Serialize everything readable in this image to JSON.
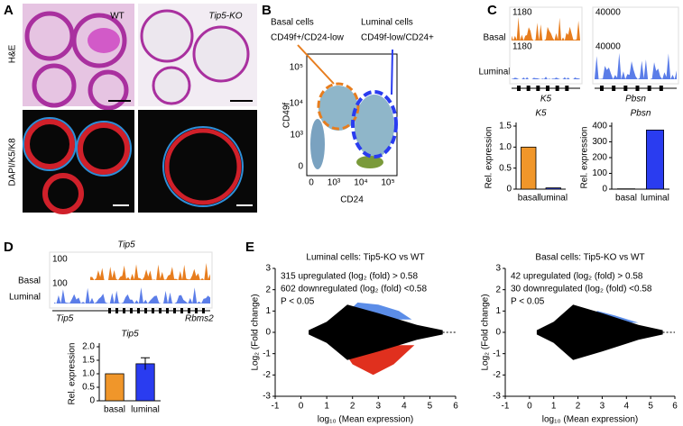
{
  "panels": {
    "A": {
      "label": "A",
      "wt": "WT",
      "ko": "Tip5-KO",
      "row1": "H&E",
      "row2": "DAPI/K5/K8"
    },
    "B": {
      "label": "B",
      "basal": "Basal cells",
      "basal_markers": "CD49f+/CD24-low",
      "luminal": "Luminal cells",
      "luminal_markers": "CD49f-low/CD24+",
      "xlabel": "CD24",
      "ylabel": "CD49f",
      "xticks": [
        "0",
        "10³",
        "10⁴",
        "10⁵"
      ],
      "yticks": [
        "0",
        "10³",
        "10⁴",
        "10⁵"
      ]
    },
    "C": {
      "label": "C",
      "basal": "Basal",
      "luminal": "Luminal",
      "basal_scales": [
        "1180",
        "40000"
      ],
      "luminal_scales": [
        "1180",
        "40000"
      ],
      "genes": [
        "K5",
        "Pbsn"
      ]
    },
    "D": {
      "label": "D",
      "gene": "Tip5",
      "basal": "Basal",
      "luminal": "Luminal",
      "scales": [
        "100",
        "100"
      ],
      "gene_left": "Tip5",
      "gene_right": "Rbms2"
    },
    "E": {
      "label": "E"
    }
  },
  "chart_data": [
    {
      "type": "bar",
      "title": "K5",
      "ylabel": "Rel. expression",
      "categories": [
        "basal",
        "luminal"
      ],
      "values": [
        1.0,
        0.03
      ],
      "colors": [
        "#f0962a",
        "#2a3cf0"
      ],
      "ylim": [
        0,
        1.5
      ],
      "yticks": [
        0,
        0.5,
        {
          "value": 1,
          "label": "1.0"
        },
        1.5
      ]
    },
    {
      "type": "bar",
      "title": "Pbsn",
      "ylabel": "Rel. expression",
      "categories": [
        "basal",
        "luminal"
      ],
      "values": [
        2,
        375
      ],
      "colors": [
        "#f0962a",
        "#2a3cf0"
      ],
      "ylim": [
        0,
        400
      ],
      "yticks": [
        0,
        100,
        200,
        300,
        400
      ]
    },
    {
      "type": "bar",
      "title": "Tip5",
      "ylabel": "Rel. expression",
      "categories": [
        "basal",
        "luminal"
      ],
      "values": [
        1.0,
        1.37
      ],
      "errors": [
        null,
        0.22
      ],
      "colors": [
        "#f0962a",
        "#2a3cf0"
      ],
      "ylim": [
        0,
        2
      ],
      "yticks": [
        0,
        0.5,
        {
          "value": 1,
          "label": "1.0"
        },
        1.5,
        {
          "value": 2,
          "label": "2.0"
        }
      ]
    },
    {
      "type": "scatter",
      "title": "Luminal cells: Tip5-KO vs WT",
      "xlabel": "log₁₀ (Mean expression)",
      "ylabel": "Log₂ (Fold change)",
      "xlim": [
        -1,
        6
      ],
      "ylim": [
        -3,
        3
      ],
      "xticks": [
        -1,
        0,
        1,
        2,
        3,
        4,
        5,
        6
      ],
      "yticks": [
        -3,
        -2,
        -1,
        0,
        1,
        2,
        3
      ],
      "annotations": [
        {
          "text": "315 upregulated (log₂ (fold) > 0.58",
          "color": "#5b8de8"
        },
        {
          "text": "602 downregulated (log₂ (fold) <0.58",
          "color": "#e0301e"
        },
        {
          "text": "P < 0.05",
          "color": "#000000"
        }
      ]
    },
    {
      "type": "scatter",
      "title": "Basal cells: Tip5-KO vs WT",
      "xlabel": "log₁₀ (Mean expression)",
      "ylabel": "Log₂ (Fold change)",
      "xlim": [
        -1,
        6
      ],
      "ylim": [
        -3,
        3
      ],
      "xticks": [
        -1,
        0,
        1,
        2,
        3,
        4,
        5,
        6
      ],
      "yticks": [
        -3,
        -2,
        -1,
        0,
        1,
        2,
        3
      ],
      "annotations": [
        {
          "text": "42 upregulated (log₂ (fold) > 0.58",
          "color": "#5b8de8"
        },
        {
          "text": "30 downregulated (log₂ (fold) <0.58",
          "color": "#e0301e"
        },
        {
          "text": "P < 0.05",
          "color": "#000000"
        }
      ]
    }
  ]
}
